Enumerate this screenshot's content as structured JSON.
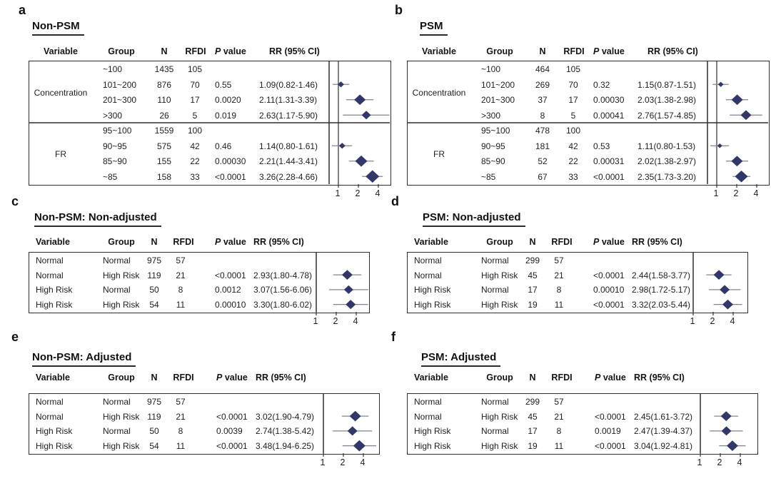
{
  "colors": {
    "diamond": "#313768",
    "ci_line": "#82858e",
    "border": "#2e2e2e",
    "text": "#1f1f1f"
  },
  "p_value_label_parts": [
    "P",
    " value"
  ],
  "chart_data": [
    {
      "type": "forest",
      "panel": "a",
      "title": "Non-PSM",
      "columns": [
        "Variable",
        "Group",
        "N",
        "RFDI",
        "P value",
        "RR (95% CI)"
      ],
      "x_scale": "log2",
      "x_ticks": [
        1,
        2,
        4
      ],
      "reference_line": 1,
      "groups": [
        {
          "variable": "Concentration",
          "rows": [
            {
              "group": "~100",
              "n": "1435",
              "rfdi": "105",
              "p": "",
              "rr_text": "",
              "est": null,
              "lo": null,
              "hi": null,
              "size": 0
            },
            {
              "group": "101~200",
              "n": "876",
              "rfdi": "70",
              "p": "0.55",
              "rr_text": "1.09(0.82-1.46)",
              "est": 1.09,
              "lo": 0.82,
              "hi": 1.46,
              "size": 9
            },
            {
              "group": "201~300",
              "n": "110",
              "rfdi": "17",
              "p": "0.0020",
              "rr_text": "2.11(1.31-3.39)",
              "est": 2.11,
              "lo": 1.31,
              "hi": 3.39,
              "size": 16
            },
            {
              "group": ">300",
              "n": "26",
              "rfdi": "5",
              "p": "0.019",
              "rr_text": "2.63(1.17-5.90)",
              "est": 2.63,
              "lo": 1.17,
              "hi": 5.9,
              "size": 13
            }
          ]
        },
        {
          "variable": "FR",
          "rows": [
            {
              "group": "95~100",
              "n": "1559",
              "rfdi": "100",
              "p": "",
              "rr_text": "",
              "est": null,
              "lo": null,
              "hi": null,
              "size": 0
            },
            {
              "group": "90~95",
              "n": "575",
              "rfdi": "42",
              "p": "0.46",
              "rr_text": "1.14(0.80-1.61)",
              "est": 1.14,
              "lo": 0.8,
              "hi": 1.61,
              "size": 9
            },
            {
              "group": "85~90",
              "n": "155",
              "rfdi": "22",
              "p": "0.00030",
              "rr_text": "2.21(1.44-3.41)",
              "est": 2.21,
              "lo": 1.44,
              "hi": 3.41,
              "size": 17
            },
            {
              "group": "~85",
              "n": "158",
              "rfdi": "33",
              "p": "<0.0001",
              "rr_text": "3.26(2.28-4.66)",
              "est": 3.26,
              "lo": 2.28,
              "hi": 4.66,
              "size": 19
            }
          ]
        }
      ]
    },
    {
      "type": "forest",
      "panel": "b",
      "title": "PSM",
      "columns": [
        "Variable",
        "Group",
        "N",
        "RFDI",
        "P value",
        "RR (95% CI)"
      ],
      "x_scale": "log2",
      "x_ticks": [
        1,
        2,
        4
      ],
      "reference_line": 1,
      "groups": [
        {
          "variable": "Concentration",
          "rows": [
            {
              "group": "~100",
              "n": "464",
              "rfdi": "105",
              "p": "",
              "rr_text": "",
              "est": null,
              "lo": null,
              "hi": null,
              "size": 0
            },
            {
              "group": "101~200",
              "n": "269",
              "rfdi": "70",
              "p": "0.32",
              "rr_text": "1.15(0.87-1.51)",
              "est": 1.15,
              "lo": 0.87,
              "hi": 1.51,
              "size": 8
            },
            {
              "group": "201~300",
              "n": "37",
              "rfdi": "17",
              "p": "0.00030",
              "rr_text": "2.03(1.38-2.98)",
              "est": 2.03,
              "lo": 1.38,
              "hi": 2.98,
              "size": 16
            },
            {
              "group": ">300",
              "n": "8",
              "rfdi": "5",
              "p": "0.00041",
              "rr_text": "2.76(1.57-4.85)",
              "est": 2.76,
              "lo": 1.57,
              "hi": 4.85,
              "size": 15
            }
          ]
        },
        {
          "variable": "FR",
          "rows": [
            {
              "group": "95~100",
              "n": "478",
              "rfdi": "100",
              "p": "",
              "rr_text": "",
              "est": null,
              "lo": null,
              "hi": null,
              "size": 0
            },
            {
              "group": "90~95",
              "n": "181",
              "rfdi": "42",
              "p": "0.53",
              "rr_text": "1.11(0.80-1.53)",
              "est": 1.11,
              "lo": 0.8,
              "hi": 1.53,
              "size": 7
            },
            {
              "group": "85~90",
              "n": "52",
              "rfdi": "22",
              "p": "0.00031",
              "rr_text": "2.02(1.38-2.97)",
              "est": 2.02,
              "lo": 1.38,
              "hi": 2.97,
              "size": 16
            },
            {
              "group": "~85",
              "n": "67",
              "rfdi": "33",
              "p": "<0.0001",
              "rr_text": "2.35(1.73-3.20)",
              "est": 2.35,
              "lo": 1.73,
              "hi": 3.2,
              "size": 18
            }
          ]
        }
      ]
    },
    {
      "type": "forest",
      "panel": "c",
      "title": "Non-PSM: Non-adjusted",
      "columns": [
        "Variable",
        "Group",
        "N",
        "RFDI",
        "P value",
        "RR (95% CI)"
      ],
      "x_scale": "log2",
      "x_ticks": [
        1,
        2,
        4
      ],
      "reference_line": 1,
      "rows": [
        {
          "variable": "Normal",
          "group": "Normal",
          "n": "975",
          "rfdi": "57",
          "p": "",
          "rr_text": "",
          "est": null,
          "lo": null,
          "hi": null,
          "size": 0
        },
        {
          "variable": "Normal",
          "group": "High Risk",
          "n": "119",
          "rfdi": "21",
          "p": "<0.0001",
          "rr_text": "2.93(1.80-4.78)",
          "est": 2.93,
          "lo": 1.8,
          "hi": 4.78,
          "size": 15
        },
        {
          "variable": "High Risk",
          "group": "Normal",
          "n": "50",
          "rfdi": "8",
          "p": "0.0012",
          "rr_text": "3.07(1.56-6.06)",
          "est": 3.07,
          "lo": 1.56,
          "hi": 6.06,
          "size": 13
        },
        {
          "variable": "High Risk",
          "group": "High Risk",
          "n": "54",
          "rfdi": "11",
          "p": "0.00010",
          "rr_text": "3.30(1.80-6.02)",
          "est": 3.3,
          "lo": 1.8,
          "hi": 6.02,
          "size": 14
        }
      ]
    },
    {
      "type": "forest",
      "panel": "d",
      "title": "PSM: Non-adjusted",
      "columns": [
        "Variable",
        "Group",
        "N",
        "RFDI",
        "P value",
        "RR (95% CI)"
      ],
      "x_scale": "log2",
      "x_ticks": [
        1,
        2,
        4
      ],
      "reference_line": 1,
      "rows": [
        {
          "variable": "Normal",
          "group": "Normal",
          "n": "299",
          "rfdi": "57",
          "p": "",
          "rr_text": "",
          "est": null,
          "lo": null,
          "hi": null,
          "size": 0
        },
        {
          "variable": "Normal",
          "group": "High Risk",
          "n": "45",
          "rfdi": "21",
          "p": "<0.0001",
          "rr_text": "2.44(1.58-3.77)",
          "est": 2.44,
          "lo": 1.58,
          "hi": 3.77,
          "size": 15
        },
        {
          "variable": "High Risk",
          "group": "Normal",
          "n": "17",
          "rfdi": "8",
          "p": "0.00010",
          "rr_text": "2.98(1.72-5.17)",
          "est": 2.98,
          "lo": 1.72,
          "hi": 5.17,
          "size": 14
        },
        {
          "variable": "High Risk",
          "group": "High Risk",
          "n": "19",
          "rfdi": "11",
          "p": "<0.0001",
          "rr_text": "3.32(2.03-5.44)",
          "est": 3.32,
          "lo": 2.03,
          "hi": 5.44,
          "size": 15
        }
      ]
    },
    {
      "type": "forest",
      "panel": "e",
      "title": "Non-PSM: Adjusted",
      "columns": [
        "Variable",
        "Group",
        "N",
        "RFDI",
        "P value",
        "RR (95% CI)"
      ],
      "x_scale": "log2",
      "x_ticks": [
        1,
        2,
        4
      ],
      "reference_line": 1,
      "rows": [
        {
          "variable": "Normal",
          "group": "Normal",
          "n": "975",
          "rfdi": "57",
          "p": "",
          "rr_text": "",
          "est": null,
          "lo": null,
          "hi": null,
          "size": 0
        },
        {
          "variable": "Normal",
          "group": "High Risk",
          "n": "119",
          "rfdi": "21",
          "p": "<0.0001",
          "rr_text": "3.02(1.90-4.79)",
          "est": 3.02,
          "lo": 1.9,
          "hi": 4.79,
          "size": 16
        },
        {
          "variable": "High Risk",
          "group": "Normal",
          "n": "50",
          "rfdi": "8",
          "p": "0.0039",
          "rr_text": "2.74(1.38-5.42)",
          "est": 2.74,
          "lo": 1.38,
          "hi": 5.42,
          "size": 14
        },
        {
          "variable": "High Risk",
          "group": "High Risk",
          "n": "54",
          "rfdi": "11",
          "p": "<0.0001",
          "rr_text": "3.48(1.94-6.25)",
          "est": 3.48,
          "lo": 1.94,
          "hi": 6.25,
          "size": 17
        }
      ]
    },
    {
      "type": "forest",
      "panel": "f",
      "title": "PSM: Adjusted",
      "columns": [
        "Variable",
        "Group",
        "N",
        "RFDI",
        "P value",
        "RR (95% CI)"
      ],
      "x_scale": "log2",
      "x_ticks": [
        1,
        2,
        4
      ],
      "reference_line": 1,
      "rows": [
        {
          "variable": "Normal",
          "group": "Normal",
          "n": "299",
          "rfdi": "57",
          "p": "",
          "rr_text": "",
          "est": null,
          "lo": null,
          "hi": null,
          "size": 0
        },
        {
          "variable": "Normal",
          "group": "High Risk",
          "n": "45",
          "rfdi": "21",
          "p": "<0.0001",
          "rr_text": "2.45(1.61-3.72)",
          "est": 2.45,
          "lo": 1.61,
          "hi": 3.72,
          "size": 15
        },
        {
          "variable": "High Risk",
          "group": "Normal",
          "n": "17",
          "rfdi": "8",
          "p": "0.0019",
          "rr_text": "2.47(1.39-4.37)",
          "est": 2.47,
          "lo": 1.39,
          "hi": 4.37,
          "size": 14
        },
        {
          "variable": "High Risk",
          "group": "High Risk",
          "n": "19",
          "rfdi": "11",
          "p": "<0.0001",
          "rr_text": "3.04(1.92-4.81)",
          "est": 3.04,
          "lo": 1.92,
          "hi": 4.81,
          "size": 16
        }
      ]
    }
  ]
}
